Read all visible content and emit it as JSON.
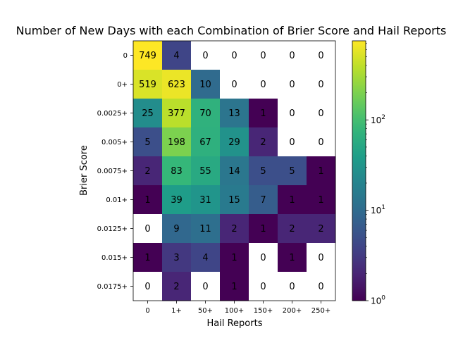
{
  "chart_data": {
    "type": "heatmap",
    "title": "Number of New Days with each Combination of Brier Score and Hail Reports",
    "xlabel": "Hail Reports",
    "ylabel": "Brier Score",
    "x_categories": [
      "0",
      "1+",
      "50+",
      "100+",
      "150+",
      "200+",
      "250+"
    ],
    "y_categories": [
      "0",
      "0+",
      "0.0025+",
      "0.005+",
      "0.0075+",
      "0.01+",
      "0.0125+",
      "0.015+",
      "0.0175+"
    ],
    "values": [
      [
        749,
        4,
        0,
        0,
        0,
        0,
        0
      ],
      [
        519,
        623,
        10,
        0,
        0,
        0,
        0
      ],
      [
        25,
        377,
        70,
        13,
        1,
        0,
        0
      ],
      [
        5,
        198,
        67,
        29,
        2,
        0,
        0
      ],
      [
        2,
        83,
        55,
        14,
        5,
        5,
        1
      ],
      [
        1,
        39,
        31,
        15,
        7,
        1,
        1
      ],
      [
        0,
        9,
        11,
        2,
        1,
        2,
        2
      ],
      [
        1,
        3,
        4,
        1,
        0,
        1,
        0
      ],
      [
        0,
        2,
        0,
        1,
        0,
        0,
        0
      ]
    ],
    "colorbar": {
      "scale": "log",
      "min": 1,
      "max": 749,
      "colormap": "viridis",
      "ticks": [
        {
          "base": "10",
          "exp": "0"
        },
        {
          "base": "10",
          "exp": "1"
        },
        {
          "base": "10",
          "exp": "2"
        }
      ]
    },
    "zero_color": "#ffffff",
    "grid": false
  }
}
